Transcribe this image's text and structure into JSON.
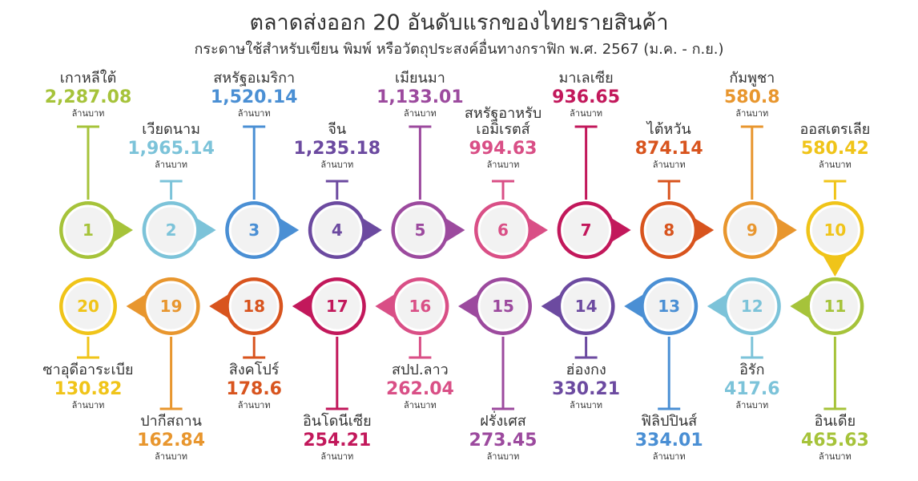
{
  "title": "ตลาดส่งออก 20 อันดับแรกของไทยรายสินค้า",
  "subtitle": "กระดาษใช้สำหรับเขียน พิมพ์ หรือวัตถุประสงค์อื่นทางกราฟิก พ.ศ. 2567 (ม.ค. - ก.ย.)",
  "unit": "ล้านบาท",
  "items": [
    {
      "rank": 1,
      "name": "เกาหลีใต้",
      "value": "2,287.08",
      "color": "#a6c33a"
    },
    {
      "rank": 2,
      "name": "เวียดนาม",
      "value": "1,965.14",
      "color": "#7cc3d9"
    },
    {
      "rank": 3,
      "name": "สหรัฐอเมริกา",
      "value": "1,520.14",
      "color": "#4a8fd4"
    },
    {
      "rank": 4,
      "name": "จีน",
      "value": "1,235.18",
      "color": "#6c4aa0"
    },
    {
      "rank": 5,
      "name": "เมียนมา",
      "value": "1,133.01",
      "color": "#9c4a9e"
    },
    {
      "rank": 6,
      "name": "สหรัฐอาหรับ\nเอมิเรตส์",
      "value": "994.63",
      "color": "#d94f86"
    },
    {
      "rank": 7,
      "name": "มาเลเซีย",
      "value": "936.65",
      "color": "#c2185b"
    },
    {
      "rank": 8,
      "name": "ไต้หวัน",
      "value": "874.14",
      "color": "#d8541e"
    },
    {
      "rank": 9,
      "name": "กัมพูชา",
      "value": "580.8",
      "color": "#e8962e"
    },
    {
      "rank": 10,
      "name": "ออสเตรเลีย",
      "value": "580.42",
      "color": "#f0c419"
    },
    {
      "rank": 11,
      "name": "อินเดีย",
      "value": "465.63",
      "color": "#a6c33a"
    },
    {
      "rank": 12,
      "name": "อิรัก",
      "value": "417.6",
      "color": "#7cc3d9"
    },
    {
      "rank": 13,
      "name": "ฟิลิปปินส์",
      "value": "334.01",
      "color": "#4a8fd4"
    },
    {
      "rank": 14,
      "name": "ฮ่องกง",
      "value": "330.21",
      "color": "#6c4aa0"
    },
    {
      "rank": 15,
      "name": "ฝรั่งเศส",
      "value": "273.45",
      "color": "#9c4a9e"
    },
    {
      "rank": 16,
      "name": "สปป.ลาว",
      "value": "262.04",
      "color": "#d94f86"
    },
    {
      "rank": 17,
      "name": "อินโดนีเซีย",
      "value": "254.21",
      "color": "#c2185b"
    },
    {
      "rank": 18,
      "name": "สิงคโปร์",
      "value": "178.6",
      "color": "#d8541e"
    },
    {
      "rank": 19,
      "name": "ปากีสถาน",
      "value": "162.84",
      "color": "#e8962e"
    },
    {
      "rank": 20,
      "name": "ซาอุดีอาระเบีย",
      "value": "130.82",
      "color": "#f0c419"
    }
  ]
}
